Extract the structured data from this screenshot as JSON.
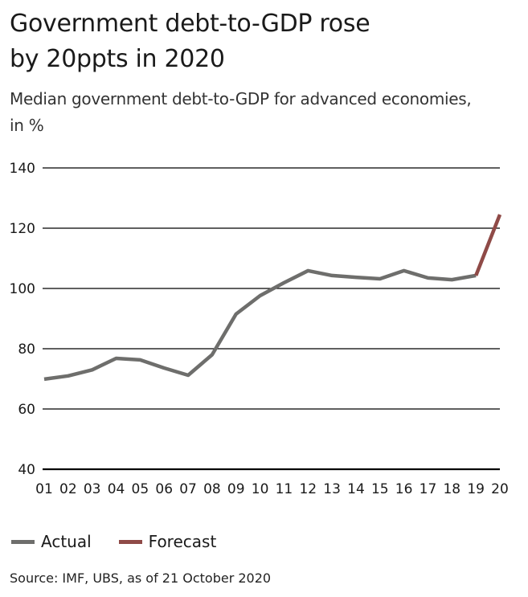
{
  "header": {
    "title": "Government debt-to-GDP rose by 20ppts in 2020",
    "subtitle": "Median government debt-to-GDP for advanced economies, in %"
  },
  "legend": {
    "items": [
      {
        "label": "Actual",
        "color": "#6e6e6c"
      },
      {
        "label": "Forecast",
        "color": "#8f4a47"
      }
    ]
  },
  "footer": {
    "source": "Source: IMF, UBS, as of 21 October 2020"
  },
  "chart_data": {
    "type": "line",
    "title": "Government debt-to-GDP rose by 20ppts in 2020",
    "subtitle": "Median government debt-to-GDP for advanced economies, in %",
    "xlabel": "",
    "ylabel": "",
    "categories": [
      "01",
      "02",
      "03",
      "04",
      "05",
      "06",
      "07",
      "08",
      "09",
      "10",
      "11",
      "12",
      "13",
      "14",
      "15",
      "16",
      "17",
      "18",
      "19",
      "20"
    ],
    "ylim": [
      40,
      140
    ],
    "yticks": [
      40,
      60,
      80,
      100,
      120,
      140
    ],
    "grid": true,
    "legend_position": "bottom-left",
    "series": [
      {
        "name": "Actual",
        "color": "#6e6e6c",
        "x": [
          "01",
          "02",
          "03",
          "04",
          "05",
          "06",
          "07",
          "08",
          "09",
          "10",
          "11",
          "12",
          "13",
          "14",
          "15",
          "16",
          "17",
          "18",
          "19"
        ],
        "values": [
          69.9,
          71.0,
          73.0,
          76.8,
          76.3,
          73.6,
          71.2,
          78.0,
          91.5,
          97.6,
          101.9,
          105.9,
          104.3,
          103.7,
          103.2,
          105.9,
          103.5,
          102.9,
          104.3
        ]
      },
      {
        "name": "Forecast",
        "color": "#8f4a47",
        "x": [
          "19",
          "20"
        ],
        "values": [
          104.3,
          124.5
        ]
      }
    ],
    "source": "Source: IMF, UBS, as of 21 October 2020"
  }
}
